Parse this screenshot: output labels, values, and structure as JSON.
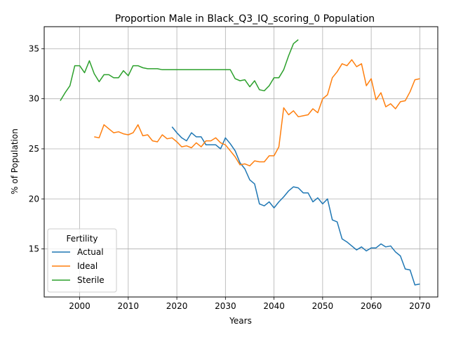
{
  "chart_data": {
    "type": "line",
    "title": "Proportion Male in Black_Q3_IQ_scoring_0 Population",
    "xlabel": "Years",
    "ylabel": "% of Population",
    "xlim": [
      1992.7,
      2073.7
    ],
    "ylim": [
      10.2,
      37.2
    ],
    "xticks": [
      2000,
      2010,
      2020,
      2030,
      2040,
      2050,
      2060,
      2070
    ],
    "yticks": [
      15,
      20,
      25,
      30,
      35
    ],
    "grid": true,
    "legend": {
      "title": "Fertility",
      "position": "lower-left"
    },
    "series": [
      {
        "name": "Actual",
        "color": "#1f77b4",
        "x": [
          2019,
          2020,
          2021,
          2022,
          2023,
          2024,
          2025,
          2026,
          2027,
          2028,
          2029,
          2030,
          2031,
          2032,
          2033,
          2034,
          2035,
          2036,
          2037,
          2038,
          2039,
          2040,
          2041,
          2042,
          2043,
          2044,
          2045,
          2046,
          2047,
          2048,
          2049,
          2050,
          2051,
          2052,
          2053,
          2054,
          2055,
          2056,
          2057,
          2058,
          2059,
          2060,
          2061,
          2062,
          2063,
          2064,
          2065,
          2066,
          2067,
          2068,
          2069,
          2070
        ],
        "y": [
          27.2,
          26.6,
          26.1,
          25.8,
          26.6,
          26.2,
          26.2,
          25.4,
          25.4,
          25.4,
          25.0,
          26.1,
          25.5,
          24.8,
          23.6,
          23.0,
          21.9,
          21.5,
          19.5,
          19.3,
          19.7,
          19.1,
          19.7,
          20.2,
          20.8,
          21.2,
          21.1,
          20.6,
          20.6,
          19.7,
          20.1,
          19.5,
          20.0,
          17.9,
          17.7,
          16.0,
          15.7,
          15.3,
          14.9,
          15.2,
          14.8,
          15.1,
          15.1,
          15.5,
          15.2,
          15.3,
          14.7,
          14.3,
          13.0,
          12.9,
          11.4,
          11.5
        ]
      },
      {
        "name": "Ideal",
        "color": "#ff7f0e",
        "x": [
          2003,
          2004,
          2005,
          2006,
          2007,
          2008,
          2009,
          2010,
          2011,
          2012,
          2013,
          2014,
          2015,
          2016,
          2017,
          2018,
          2019,
          2020,
          2021,
          2022,
          2023,
          2024,
          2025,
          2026,
          2027,
          2028,
          2029,
          2030,
          2031,
          2032,
          2033,
          2034,
          2035,
          2036,
          2037,
          2038,
          2039,
          2040,
          2041,
          2042,
          2043,
          2044,
          2045,
          2046,
          2047,
          2048,
          2049,
          2050,
          2051,
          2052,
          2053,
          2054,
          2055,
          2056,
          2057,
          2058,
          2059,
          2060,
          2061,
          2062,
          2063,
          2064,
          2065,
          2066,
          2067,
          2068,
          2069,
          2070
        ],
        "y": [
          26.2,
          26.1,
          27.4,
          27.0,
          26.6,
          26.7,
          26.5,
          26.4,
          26.6,
          27.4,
          26.3,
          26.4,
          25.8,
          25.7,
          26.4,
          26.0,
          26.1,
          25.7,
          25.2,
          25.3,
          25.1,
          25.6,
          25.2,
          25.8,
          25.8,
          26.1,
          25.6,
          25.4,
          24.8,
          24.2,
          23.4,
          23.5,
          23.3,
          23.8,
          23.7,
          23.7,
          24.3,
          24.3,
          25.2,
          29.1,
          28.4,
          28.8,
          28.2,
          28.3,
          28.4,
          29.0,
          28.6,
          30.0,
          30.4,
          32.1,
          32.7,
          33.5,
          33.3,
          33.9,
          33.2,
          33.5,
          31.3,
          32.0,
          29.9,
          30.6,
          29.2,
          29.5,
          29.0,
          29.7,
          29.8,
          30.7,
          31.9,
          32.0
        ]
      },
      {
        "name": "Sterile",
        "color": "#2ca02c",
        "x": [
          1996,
          1997,
          1998,
          1999,
          2000,
          2001,
          2002,
          2003,
          2004,
          2005,
          2006,
          2007,
          2008,
          2009,
          2010,
          2011,
          2012,
          2013,
          2014,
          2015,
          2016,
          2017,
          2018,
          2019,
          2020,
          2021,
          2022,
          2023,
          2024,
          2025,
          2026,
          2027,
          2028,
          2029,
          2030,
          2031,
          2032,
          2033,
          2034,
          2035,
          2036,
          2037,
          2038,
          2039,
          2040,
          2041,
          2042,
          2043,
          2044,
          2045
        ],
        "y": [
          29.8,
          30.6,
          31.3,
          33.3,
          33.3,
          32.6,
          33.8,
          32.5,
          31.7,
          32.4,
          32.4,
          32.1,
          32.1,
          32.8,
          32.3,
          33.3,
          33.3,
          33.1,
          33.0,
          33.0,
          33.0,
          32.9,
          32.9,
          32.9,
          32.9,
          32.9,
          32.9,
          32.9,
          32.9,
          32.9,
          32.9,
          32.9,
          32.9,
          32.9,
          32.9,
          32.9,
          32.0,
          31.8,
          31.9,
          31.2,
          31.8,
          30.9,
          30.8,
          31.3,
          32.1,
          32.1,
          32.9,
          34.3,
          35.5,
          35.9
        ]
      }
    ]
  }
}
